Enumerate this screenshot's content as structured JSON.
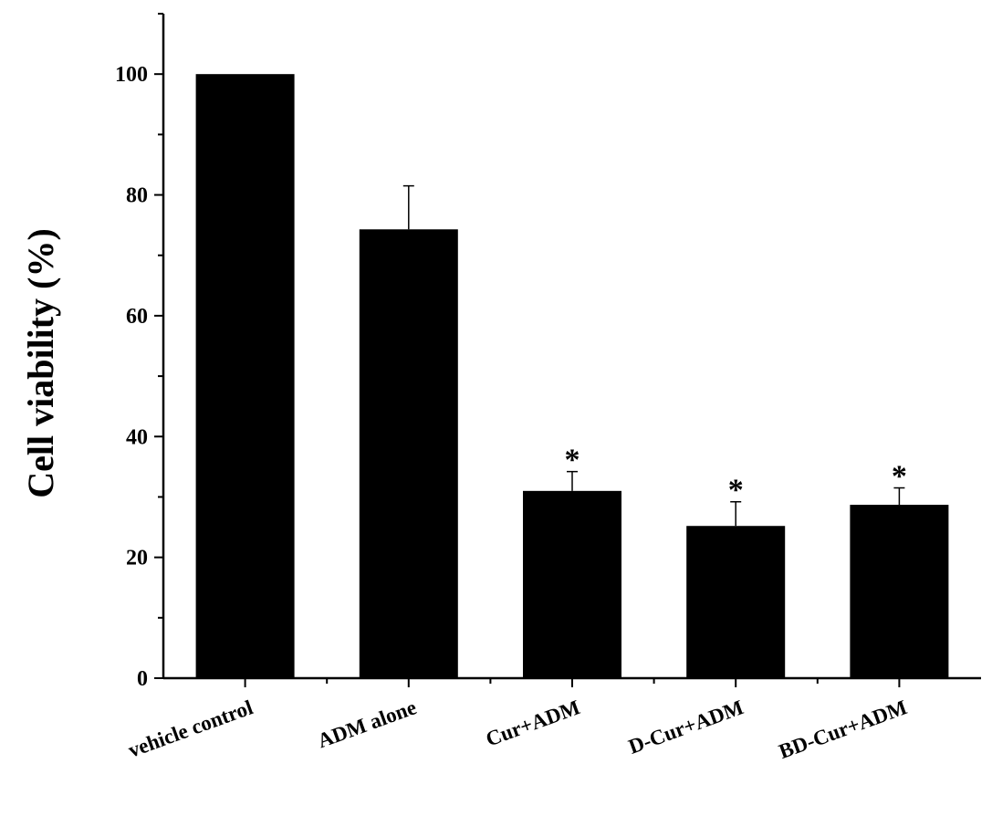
{
  "chart_data": {
    "type": "bar",
    "ylabel": "Cell viability (%)",
    "xlabel": "",
    "ylim": [
      0,
      110
    ],
    "yticks": [
      0,
      20,
      40,
      60,
      80,
      100
    ],
    "categories": [
      "vehicle control",
      "ADM alone",
      "Cur+ADM",
      "D-Cur+ADM",
      "BD-Cur+ADM"
    ],
    "values": [
      100,
      74.3,
      31,
      25.2,
      28.7
    ],
    "errors": [
      0,
      7.2,
      3.2,
      4,
      2.8
    ],
    "significance": [
      "",
      "",
      "*",
      "*",
      "*"
    ],
    "bar_color": "#000000",
    "grid": false
  }
}
